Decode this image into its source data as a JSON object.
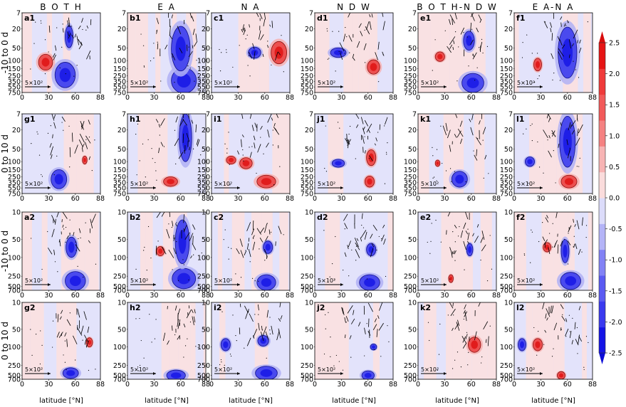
{
  "chart_data": {
    "type": "heatmap",
    "column_titles": [
      "B O T H",
      "E A",
      "N A",
      "N D W",
      "B O T H-N D W",
      "E A-N A"
    ],
    "row_labels": [
      "-10 to 0 d",
      "0 to 10 d",
      "-10 to 0 d",
      "0 to 10 d"
    ],
    "panel_labels": [
      [
        "a1",
        "b1",
        "c1",
        "d1",
        "e1",
        "f1"
      ],
      [
        "g1",
        "h1",
        "i1",
        "j1",
        "k1",
        "l1"
      ],
      [
        "a2",
        "b2",
        "c2",
        "d2",
        "e2",
        "f2"
      ],
      [
        "g2",
        "h2",
        "i2",
        "j2",
        "k2",
        "l2"
      ]
    ],
    "xlabel": "latitude [°N]",
    "xticks": [
      "0",
      "30",
      "60",
      "88"
    ],
    "yticks_rows_1_2": [
      "7",
      "20",
      "50",
      "100",
      "150",
      "250",
      "350",
      "550",
      "750"
    ],
    "yticks_rows_3_4": [
      "10",
      "50",
      "100",
      "250",
      "500",
      "700"
    ],
    "reference_arrow_label": "5×10²",
    "colorbar": {
      "ticks": [
        "2.5",
        "2.0",
        "1.5",
        "1.0",
        "0.5",
        "0.0",
        "-0.5",
        "-1.0",
        "-1.5",
        "-2.0",
        "-2.5"
      ],
      "range": [
        -2.5,
        2.5
      ],
      "colors": [
        "#1414e6",
        "#3a3aef",
        "#5a5af2",
        "#8282f5",
        "#b4b4f7",
        "#dcdcfa",
        "#fadcdc",
        "#f7b4b4",
        "#f58282",
        "#f25a5a",
        "#ef3a3a",
        "#e61414"
      ]
    }
  }
}
